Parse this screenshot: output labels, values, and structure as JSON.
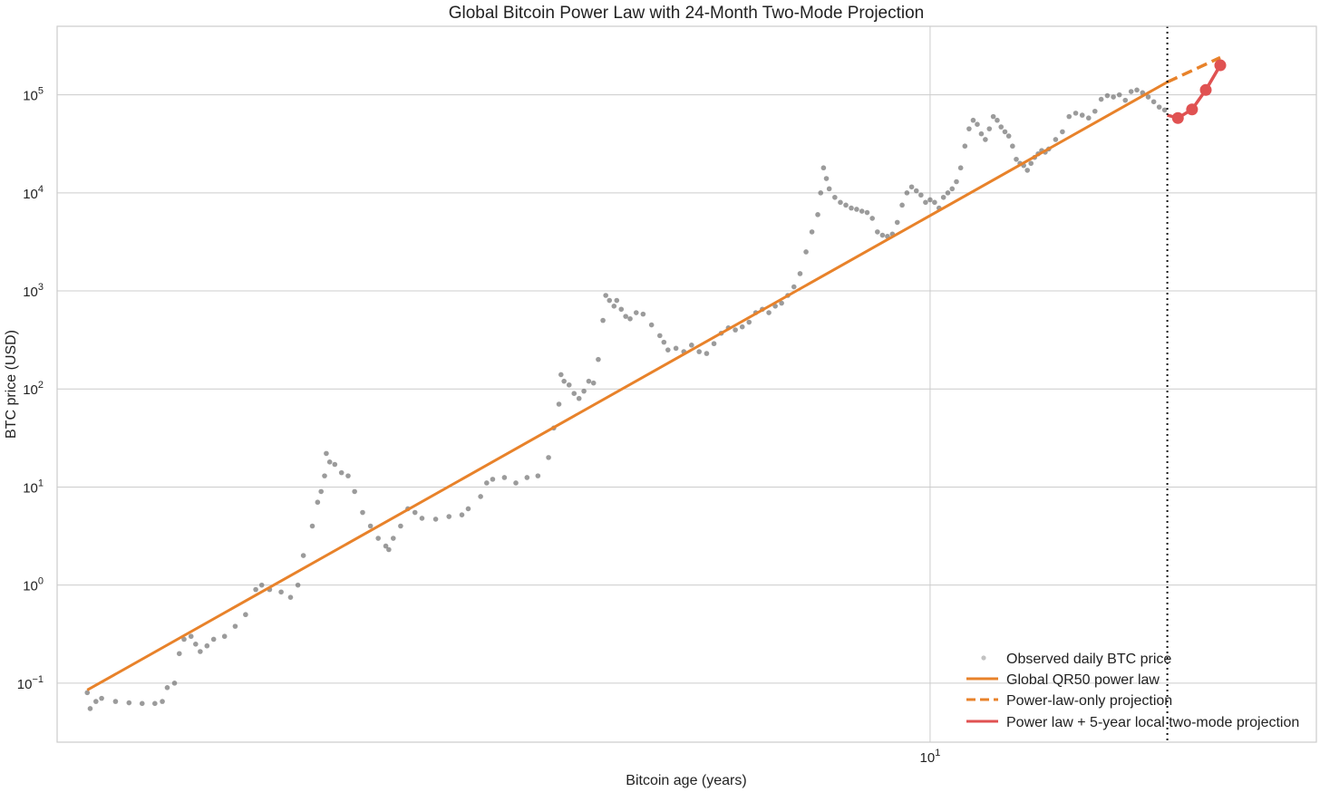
{
  "chart_data": {
    "type": "scatter",
    "title": "Global Bitcoin Power Law with 24-Month Two-Mode Projection",
    "xlabel": "Bitcoin age (years)",
    "ylabel": "BTC price (USD)",
    "xscale": "log",
    "yscale": "log",
    "xlim": [
      1.45,
      23.5
    ],
    "ylim": [
      0.025,
      500000
    ],
    "x_ticks": [
      {
        "value": 10,
        "base": "10",
        "exp": "1"
      }
    ],
    "y_ticks": [
      {
        "value": 0.1,
        "base": "10",
        "exp": "−1"
      },
      {
        "value": 1,
        "base": "10",
        "exp": "0"
      },
      {
        "value": 10,
        "base": "10",
        "exp": "1"
      },
      {
        "value": 100,
        "base": "10",
        "exp": "2"
      },
      {
        "value": 1000,
        "base": "10",
        "exp": "3"
      },
      {
        "value": 10000,
        "base": "10",
        "exp": "4"
      },
      {
        "value": 100000,
        "base": "10",
        "exp": "5"
      }
    ],
    "grid": true,
    "legend_position": "lower-right",
    "projection_start_x": 16.9,
    "series": [
      {
        "name": "Observed daily BTC price",
        "kind": "scatter",
        "color": "#707070",
        "points": [
          [
            1.55,
            0.08
          ],
          [
            1.56,
            0.055
          ],
          [
            1.58,
            0.065
          ],
          [
            1.6,
            0.07
          ],
          [
            1.65,
            0.065
          ],
          [
            1.7,
            0.063
          ],
          [
            1.75,
            0.062
          ],
          [
            1.8,
            0.062
          ],
          [
            1.83,
            0.065
          ],
          [
            1.85,
            0.09
          ],
          [
            1.88,
            0.1
          ],
          [
            1.9,
            0.2
          ],
          [
            1.92,
            0.28
          ],
          [
            1.95,
            0.3
          ],
          [
            1.97,
            0.25
          ],
          [
            1.99,
            0.21
          ],
          [
            2.02,
            0.24
          ],
          [
            2.05,
            0.28
          ],
          [
            2.1,
            0.3
          ],
          [
            2.15,
            0.38
          ],
          [
            2.2,
            0.5
          ],
          [
            2.25,
            0.9
          ],
          [
            2.28,
            1.0
          ],
          [
            2.32,
            0.9
          ],
          [
            2.38,
            0.85
          ],
          [
            2.43,
            0.75
          ],
          [
            2.47,
            1.0
          ],
          [
            2.5,
            2.0
          ],
          [
            2.55,
            4.0
          ],
          [
            2.58,
            7.0
          ],
          [
            2.6,
            9.0
          ],
          [
            2.62,
            13.0
          ],
          [
            2.63,
            22.0
          ],
          [
            2.65,
            18.0
          ],
          [
            2.68,
            17.0
          ],
          [
            2.72,
            14.0
          ],
          [
            2.76,
            13.0
          ],
          [
            2.8,
            9.0
          ],
          [
            2.85,
            5.5
          ],
          [
            2.9,
            4.0
          ],
          [
            2.95,
            3.0
          ],
          [
            3.0,
            2.5
          ],
          [
            3.02,
            2.3
          ],
          [
            3.05,
            3.0
          ],
          [
            3.1,
            4.0
          ],
          [
            3.15,
            6.0
          ],
          [
            3.2,
            5.5
          ],
          [
            3.25,
            4.8
          ],
          [
            3.35,
            4.7
          ],
          [
            3.45,
            5.0
          ],
          [
            3.55,
            5.2
          ],
          [
            3.6,
            6.0
          ],
          [
            3.7,
            8.0
          ],
          [
            3.75,
            11.0
          ],
          [
            3.8,
            12.0
          ],
          [
            3.9,
            12.5
          ],
          [
            4.0,
            11.0
          ],
          [
            4.1,
            12.5
          ],
          [
            4.2,
            13.0
          ],
          [
            4.3,
            20.0
          ],
          [
            4.35,
            40.0
          ],
          [
            4.4,
            70.0
          ],
          [
            4.42,
            140.0
          ],
          [
            4.45,
            120.0
          ],
          [
            4.5,
            110.0
          ],
          [
            4.55,
            90.0
          ],
          [
            4.6,
            80.0
          ],
          [
            4.65,
            95.0
          ],
          [
            4.7,
            120.0
          ],
          [
            4.75,
            115.0
          ],
          [
            4.8,
            200.0
          ],
          [
            4.85,
            500.0
          ],
          [
            4.88,
            900.0
          ],
          [
            4.92,
            800.0
          ],
          [
            4.97,
            700.0
          ],
          [
            5.0,
            800.0
          ],
          [
            5.05,
            650.0
          ],
          [
            5.1,
            550.0
          ],
          [
            5.15,
            520.0
          ],
          [
            5.22,
            600.0
          ],
          [
            5.3,
            580.0
          ],
          [
            5.4,
            450.0
          ],
          [
            5.5,
            350.0
          ],
          [
            5.55,
            300.0
          ],
          [
            5.6,
            250.0
          ],
          [
            5.7,
            260.0
          ],
          [
            5.8,
            240.0
          ],
          [
            5.9,
            280.0
          ],
          [
            6.0,
            240.0
          ],
          [
            6.1,
            230.0
          ],
          [
            6.2,
            290.0
          ],
          [
            6.3,
            370.0
          ],
          [
            6.4,
            420.0
          ],
          [
            6.5,
            400.0
          ],
          [
            6.6,
            430.0
          ],
          [
            6.7,
            480.0
          ],
          [
            6.8,
            600.0
          ],
          [
            6.9,
            650.0
          ],
          [
            7.0,
            600.0
          ],
          [
            7.1,
            700.0
          ],
          [
            7.2,
            750.0
          ],
          [
            7.3,
            900.0
          ],
          [
            7.4,
            1100.0
          ],
          [
            7.5,
            1500.0
          ],
          [
            7.6,
            2500.0
          ],
          [
            7.7,
            4000.0
          ],
          [
            7.8,
            6000.0
          ],
          [
            7.85,
            10000.0
          ],
          [
            7.9,
            18000.0
          ],
          [
            7.95,
            14000.0
          ],
          [
            8.0,
            11000.0
          ],
          [
            8.1,
            9000.0
          ],
          [
            8.2,
            8000.0
          ],
          [
            8.3,
            7500.0
          ],
          [
            8.4,
            7000.0
          ],
          [
            8.5,
            6800.0
          ],
          [
            8.6,
            6500.0
          ],
          [
            8.7,
            6300.0
          ],
          [
            8.8,
            5500.0
          ],
          [
            8.9,
            4000.0
          ],
          [
            9.0,
            3700.0
          ],
          [
            9.1,
            3600.0
          ],
          [
            9.2,
            3800.0
          ],
          [
            9.3,
            5000.0
          ],
          [
            9.4,
            7500.0
          ],
          [
            9.5,
            10000.0
          ],
          [
            9.6,
            11500.0
          ],
          [
            9.7,
            10500.0
          ],
          [
            9.8,
            9500.0
          ],
          [
            9.9,
            8000.0
          ],
          [
            10.0,
            8500.0
          ],
          [
            10.1,
            8000.0
          ],
          [
            10.2,
            7000.0
          ],
          [
            10.3,
            9000.0
          ],
          [
            10.4,
            10000.0
          ],
          [
            10.5,
            11000.0
          ],
          [
            10.6,
            13000.0
          ],
          [
            10.7,
            18000.0
          ],
          [
            10.8,
            30000.0
          ],
          [
            10.9,
            45000.0
          ],
          [
            11.0,
            55000.0
          ],
          [
            11.1,
            50000.0
          ],
          [
            11.2,
            40000.0
          ],
          [
            11.3,
            35000.0
          ],
          [
            11.4,
            45000.0
          ],
          [
            11.5,
            60000.0
          ],
          [
            11.6,
            55000.0
          ],
          [
            11.7,
            47000.0
          ],
          [
            11.8,
            42000.0
          ],
          [
            11.9,
            38000.0
          ],
          [
            12.0,
            30000.0
          ],
          [
            12.1,
            22000.0
          ],
          [
            12.2,
            20000.0
          ],
          [
            12.3,
            19000.0
          ],
          [
            12.4,
            17000.0
          ],
          [
            12.5,
            20000.0
          ],
          [
            12.6,
            23000.0
          ],
          [
            12.7,
            25000.0
          ],
          [
            12.8,
            27000.0
          ],
          [
            12.9,
            26000.0
          ],
          [
            13.0,
            28000.0
          ],
          [
            13.2,
            35000.0
          ],
          [
            13.4,
            42000.0
          ],
          [
            13.6,
            60000.0
          ],
          [
            13.8,
            65000.0
          ],
          [
            14.0,
            62000.0
          ],
          [
            14.2,
            58000.0
          ],
          [
            14.4,
            68000.0
          ],
          [
            14.6,
            90000.0
          ],
          [
            14.8,
            98000.0
          ],
          [
            15.0,
            95000.0
          ],
          [
            15.2,
            100000.0
          ],
          [
            15.4,
            88000.0
          ],
          [
            15.6,
            108000.0
          ],
          [
            15.8,
            112000.0
          ],
          [
            16.0,
            105000.0
          ],
          [
            16.2,
            95000.0
          ],
          [
            16.4,
            85000.0
          ],
          [
            16.6,
            75000.0
          ],
          [
            16.8,
            70000.0
          ]
        ]
      },
      {
        "name": "Global QR50 power law",
        "kind": "line",
        "color": "#E8822A",
        "points": [
          [
            1.55,
            0.085
          ],
          [
            16.9,
            135000
          ]
        ]
      },
      {
        "name": "Power-law-only projection",
        "kind": "dashed-line",
        "color": "#E8822A",
        "points": [
          [
            16.9,
            135000
          ],
          [
            19.0,
            240000
          ]
        ]
      },
      {
        "name": "Power law + 5-year local two-mode projection",
        "kind": "line-markers",
        "color": "#E05252",
        "points": [
          [
            16.9,
            62000
          ],
          [
            17.3,
            58000
          ],
          [
            17.85,
            71000
          ],
          [
            18.4,
            112000
          ],
          [
            19.0,
            200000
          ]
        ]
      }
    ]
  }
}
